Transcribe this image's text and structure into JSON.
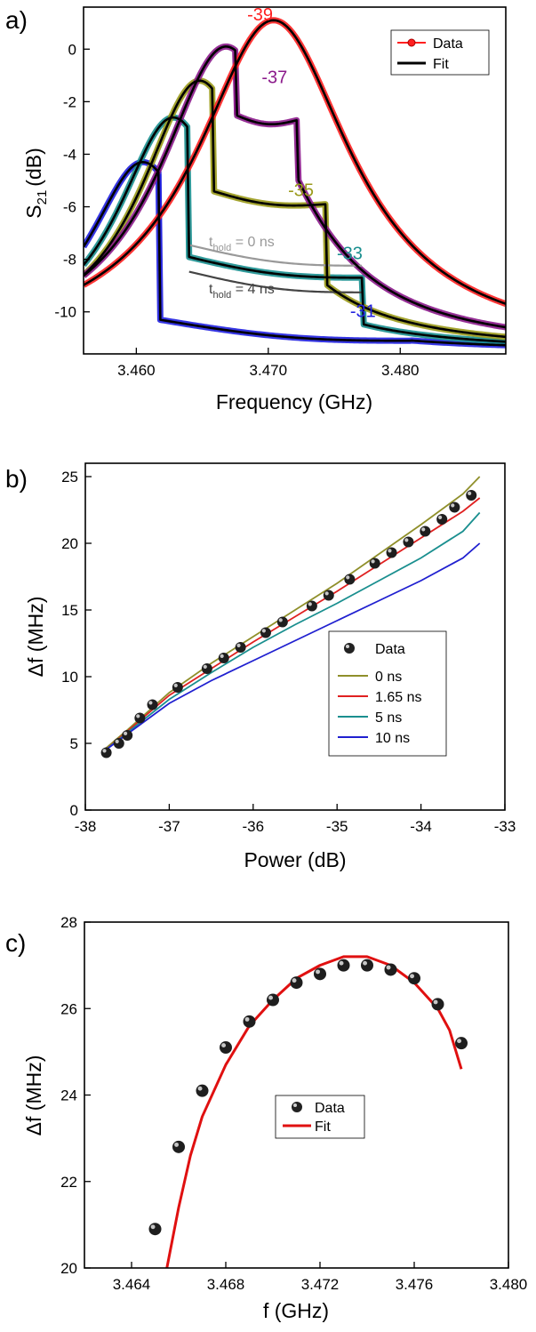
{
  "chart_data": [
    {
      "type": "line",
      "panel_label": "a)",
      "xlabel": "Frequency (GHz)",
      "ylabel": "S21 (dB)",
      "ylabel_main": "S",
      "ylabel_sub": "21",
      "ylabel_unit": "(dB)",
      "xlim": [
        3.456,
        3.488
      ],
      "ylim": [
        -11.6,
        1.6
      ],
      "xticks": [
        3.46,
        3.47,
        3.48
      ],
      "xtick_labels": [
        "3.460",
        "3.470",
        "3.480"
      ],
      "yticks": [
        0,
        -2,
        -4,
        -6,
        -8,
        -10
      ],
      "ytick_labels": [
        "0",
        "-2",
        "-4",
        "-6",
        "-8",
        "-10"
      ],
      "legend": {
        "position": "top-right",
        "entries": [
          "Data",
          "Fit"
        ]
      },
      "series": [
        {
          "power_label": "-39",
          "color": "#ff2020",
          "f0": 3.4704,
          "peak": 1.1,
          "base": -11.5,
          "gamma": 0.0072,
          "jump_lo": null,
          "jump_hi": null,
          "floor_lo": null,
          "floor_hi": null
        },
        {
          "power_label": "-37",
          "color": "#8b1a8b",
          "f0": 3.4668,
          "peak": 0.1,
          "base": -11.5,
          "gamma": 0.0062,
          "jump_lo": 3.4675,
          "jump_hi": 3.4722,
          "floor_lo": -2.5,
          "floor_hi": -2.7
        },
        {
          "power_label": "-35",
          "color": "#9a9a1a",
          "f0": 3.4648,
          "peak": -1.2,
          "base": -11.5,
          "gamma": 0.0055,
          "jump_lo": 3.4658,
          "jump_hi": 3.4744,
          "floor_lo": -5.4,
          "floor_hi": -5.9
        },
        {
          "power_label": "-33",
          "color": "#1a8f8f",
          "f0": 3.4628,
          "peak": -2.6,
          "base": -11.5,
          "gamma": 0.0052,
          "jump_lo": 3.4639,
          "jump_hi": 3.4772,
          "floor_lo": -7.9,
          "floor_hi": -8.7
        },
        {
          "power_label": "-31",
          "color": "#2020e0",
          "f0": 3.4605,
          "peak": -4.3,
          "base": -11.5,
          "gamma": 0.005,
          "jump_lo": 3.4618,
          "jump_hi": 3.4808,
          "floor_lo": -10.3,
          "floor_hi": -11.1
        }
      ],
      "annotations": [
        {
          "text": "-39",
          "color": "#ff2020",
          "x": 3.4684,
          "y": 1.1
        },
        {
          "text": "-37",
          "color": "#8b1a8b",
          "x": 3.4695,
          "y": -1.3
        },
        {
          "text": "-35",
          "color": "#9a9a1a",
          "x": 3.4715,
          "y": -5.6
        },
        {
          "text": "-33",
          "color": "#1a8f8f",
          "x": 3.4752,
          "y": -8.0
        },
        {
          "text": "-31",
          "color": "#2020e0",
          "x": 3.4762,
          "y": -10.2
        },
        {
          "text": "t",
          "sub": "hold",
          "rest": " = 0 ns",
          "color": "#999999",
          "x": 3.4655,
          "y": -7.5
        },
        {
          "text": "t",
          "sub": "hold",
          "rest": " = 4 ns",
          "color": "#444444",
          "x": 3.4655,
          "y": -9.3
        }
      ]
    },
    {
      "type": "scatter",
      "panel_label": "b)",
      "xlabel": "Power (dB)",
      "ylabel": "Δf (MHz)",
      "xlim": [
        -38,
        -33
      ],
      "ylim": [
        0,
        26
      ],
      "xticks": [
        -38,
        -37,
        -36,
        -35,
        -34,
        -33
      ],
      "xtick_labels": [
        "-38",
        "-37",
        "-36",
        "-35",
        "-34",
        "-33"
      ],
      "yticks": [
        0,
        5,
        10,
        15,
        20,
        25
      ],
      "ytick_labels": [
        "0",
        "5",
        "10",
        "15",
        "20",
        "25"
      ],
      "legend": {
        "position": "lower-right",
        "entries": [
          "Data",
          "0 ns",
          "1.65 ns",
          "5 ns",
          "10 ns"
        ]
      },
      "data_points": {
        "name": "Data",
        "x": [
          -37.75,
          -37.6,
          -37.5,
          -37.35,
          -37.2,
          -36.9,
          -36.55,
          -36.35,
          -36.15,
          -35.85,
          -35.65,
          -35.3,
          -35.1,
          -34.85,
          -34.55,
          -34.35,
          -34.15,
          -33.95,
          -33.75,
          -33.6,
          -33.4
        ],
        "y": [
          4.3,
          5.0,
          5.6,
          6.9,
          7.9,
          9.2,
          10.6,
          11.4,
          12.2,
          13.3,
          14.1,
          15.3,
          16.1,
          17.3,
          18.5,
          19.3,
          20.1,
          20.9,
          21.8,
          22.7,
          23.6
        ]
      },
      "series": [
        {
          "name": "0 ns",
          "color": "#8f8f2a",
          "x": [
            -37.8,
            -37.5,
            -37.0,
            -36.5,
            -36.0,
            -35.5,
            -35.0,
            -34.5,
            -34.0,
            -33.5,
            -33.3
          ],
          "y": [
            4.4,
            6.0,
            8.8,
            11.0,
            13.0,
            15.0,
            17.0,
            19.2,
            21.4,
            23.7,
            25.0
          ]
        },
        {
          "name": "1.65 ns",
          "color": "#e02020",
          "x": [
            -37.8,
            -37.5,
            -37.0,
            -36.5,
            -36.0,
            -35.5,
            -35.0,
            -34.5,
            -34.0,
            -33.5,
            -33.3
          ],
          "y": [
            4.3,
            5.9,
            8.6,
            10.6,
            12.6,
            14.5,
            16.4,
            18.4,
            20.4,
            22.4,
            23.4
          ]
        },
        {
          "name": "5 ns",
          "color": "#1a8f8f",
          "x": [
            -37.8,
            -37.5,
            -37.0,
            -36.5,
            -36.0,
            -35.5,
            -35.0,
            -34.5,
            -34.0,
            -33.5,
            -33.3
          ],
          "y": [
            4.3,
            5.8,
            8.3,
            10.3,
            12.2,
            13.9,
            15.5,
            17.2,
            18.9,
            20.9,
            22.3
          ]
        },
        {
          "name": "10 ns",
          "color": "#2020d0",
          "x": [
            -37.8,
            -37.5,
            -37.0,
            -36.5,
            -36.0,
            -35.5,
            -35.0,
            -34.5,
            -34.0,
            -33.5,
            -33.3
          ],
          "y": [
            4.3,
            5.7,
            8.0,
            9.7,
            11.2,
            12.7,
            14.2,
            15.7,
            17.2,
            18.9,
            20.0
          ]
        }
      ]
    },
    {
      "type": "scatter",
      "panel_label": "c)",
      "xlabel": "f (GHz)",
      "ylabel": "Δf (MHz)",
      "xlim": [
        3.462,
        3.48
      ],
      "ylim": [
        20,
        28
      ],
      "xticks": [
        3.464,
        3.468,
        3.472,
        3.476,
        3.48
      ],
      "xtick_labels": [
        "3.464",
        "3.468",
        "3.472",
        "3.476",
        "3.480"
      ],
      "yticks": [
        20,
        22,
        24,
        26,
        28
      ],
      "ytick_labels": [
        "20",
        "22",
        "24",
        "26",
        "28"
      ],
      "legend": {
        "position": "center",
        "entries": [
          "Data",
          "Fit"
        ]
      },
      "data_points": {
        "name": "Data",
        "x": [
          3.465,
          3.466,
          3.467,
          3.468,
          3.469,
          3.47,
          3.471,
          3.472,
          3.473,
          3.474,
          3.475,
          3.476,
          3.477,
          3.478
        ],
        "y": [
          20.9,
          22.8,
          24.1,
          25.1,
          25.7,
          26.2,
          26.6,
          26.8,
          27.0,
          27.0,
          26.9,
          26.7,
          26.1,
          25.2
        ]
      },
      "fit": {
        "name": "Fit",
        "color": "#e01010",
        "x": [
          3.4655,
          3.466,
          3.4665,
          3.467,
          3.468,
          3.469,
          3.47,
          3.471,
          3.472,
          3.473,
          3.4735,
          3.474,
          3.475,
          3.476,
          3.477,
          3.4775,
          3.478
        ],
        "y": [
          20.0,
          21.4,
          22.6,
          23.5,
          24.7,
          25.6,
          26.2,
          26.7,
          27.0,
          27.2,
          27.2,
          27.2,
          27.0,
          26.6,
          26.0,
          25.5,
          24.6
        ]
      }
    }
  ]
}
